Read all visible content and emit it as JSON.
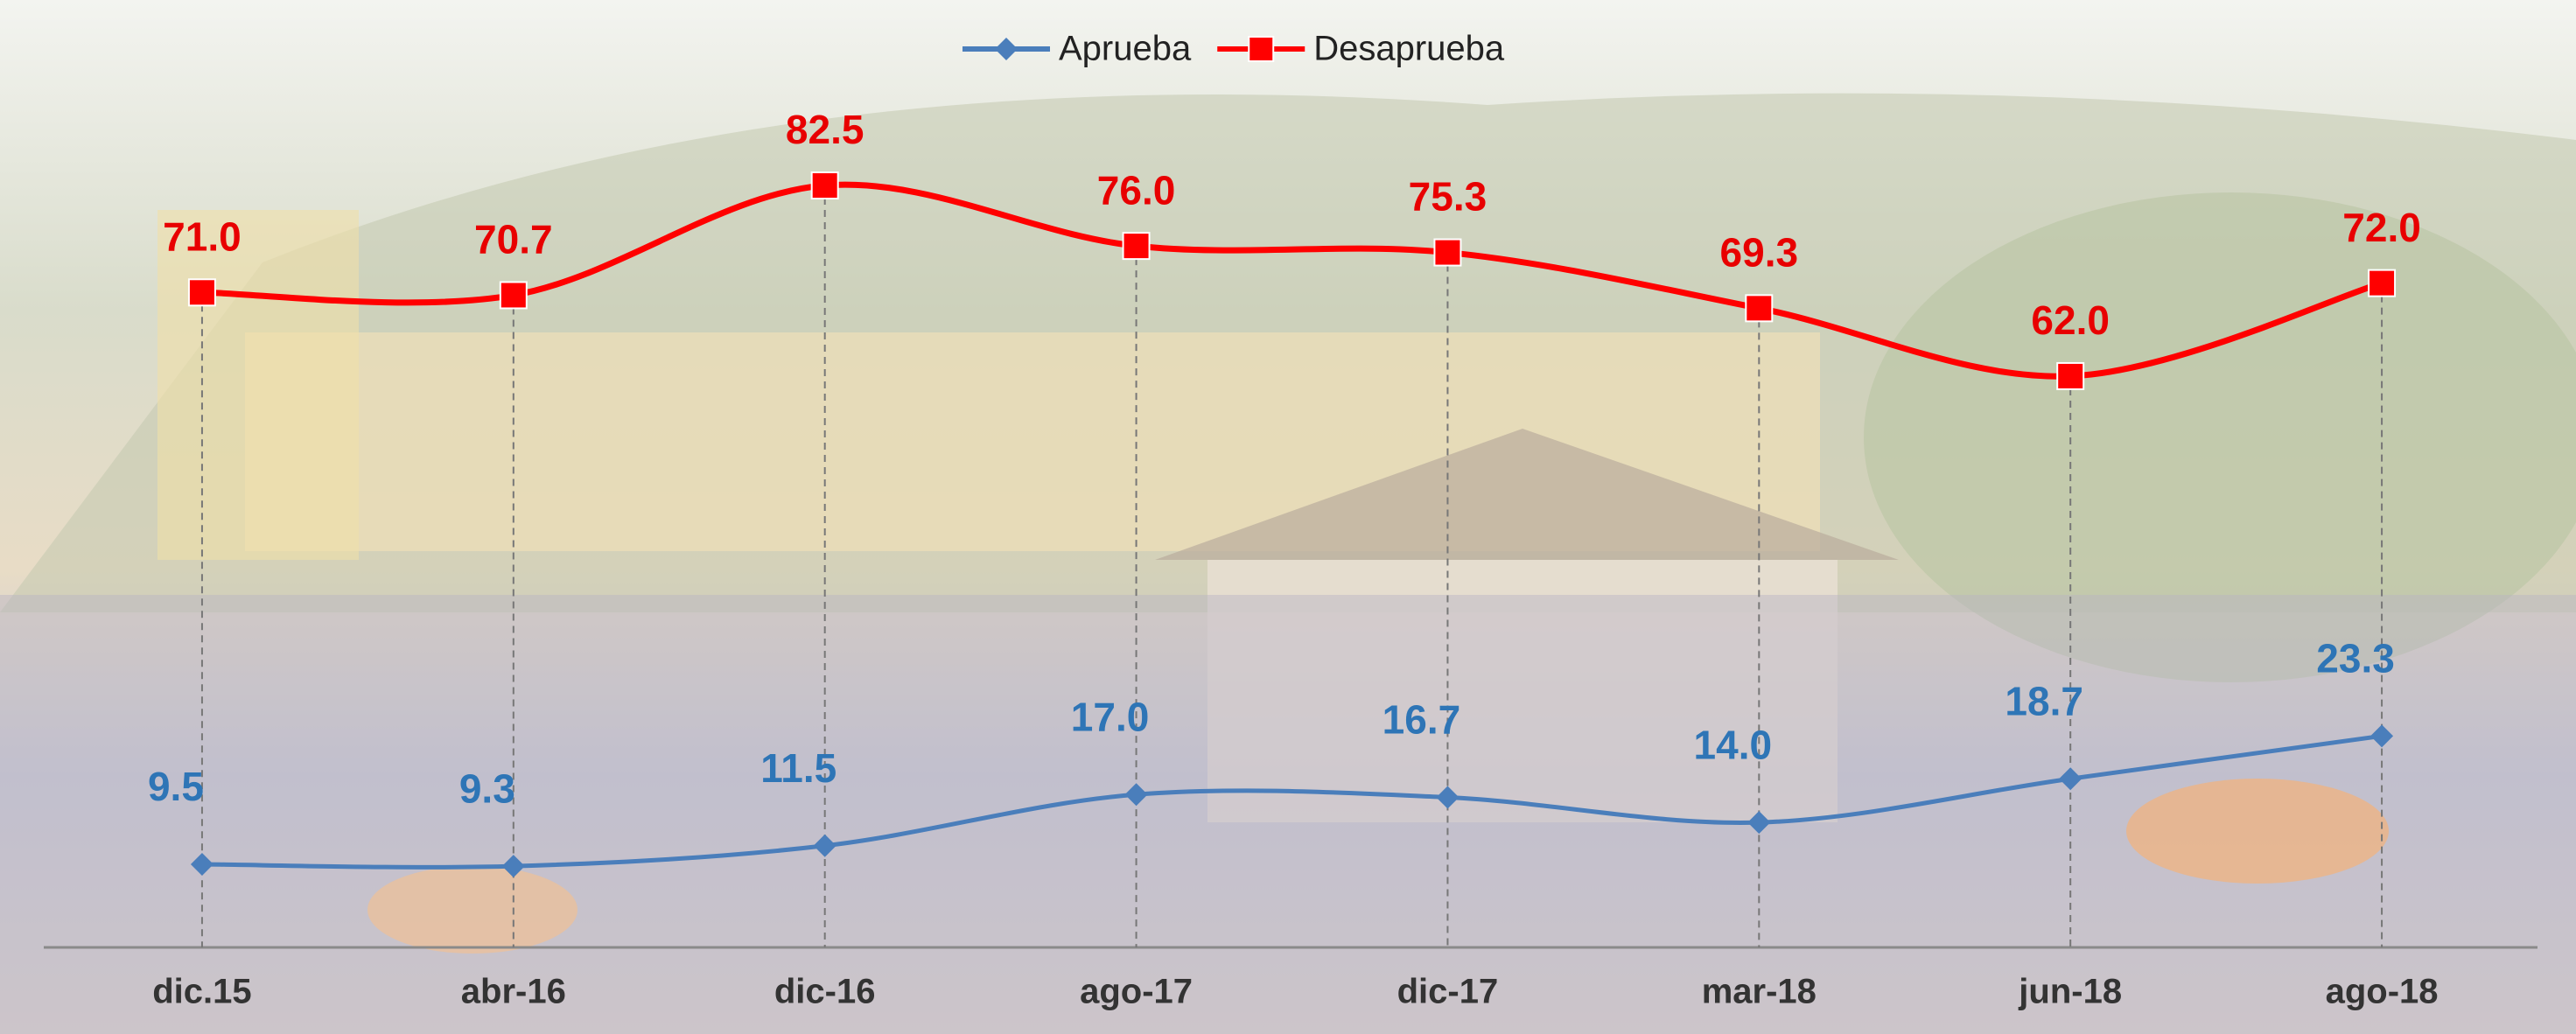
{
  "chart_data": {
    "type": "line",
    "categories": [
      "dic.15",
      "abr-16",
      "dic-16",
      "ago-17",
      "dic-17",
      "mar-18",
      "jun-18",
      "ago-18"
    ],
    "series": [
      {
        "name": "Aprueba",
        "color": "#4a7ebb",
        "label_color": "#2e75b6",
        "marker": "diamond",
        "values": [
          9.5,
          9.3,
          11.5,
          17.0,
          16.7,
          14.0,
          18.7,
          23.3
        ],
        "value_labels": [
          "9.5",
          "9.3",
          "11.5",
          "17.0",
          "16.7",
          "14.0",
          "18.7",
          "23.3"
        ]
      },
      {
        "name": "Desaprueba",
        "color": "#ff0000",
        "label_color": "#e80000",
        "marker": "square",
        "values": [
          71.0,
          70.7,
          82.5,
          76.0,
          75.3,
          69.3,
          62.0,
          72.0
        ],
        "value_labels": [
          "71.0",
          "70.7",
          "82.5",
          "76.0",
          "75.3",
          "69.3",
          "62.0",
          "72.0"
        ]
      }
    ],
    "ylim": [
      0,
      100
    ],
    "legend": "top",
    "smooth": true
  }
}
